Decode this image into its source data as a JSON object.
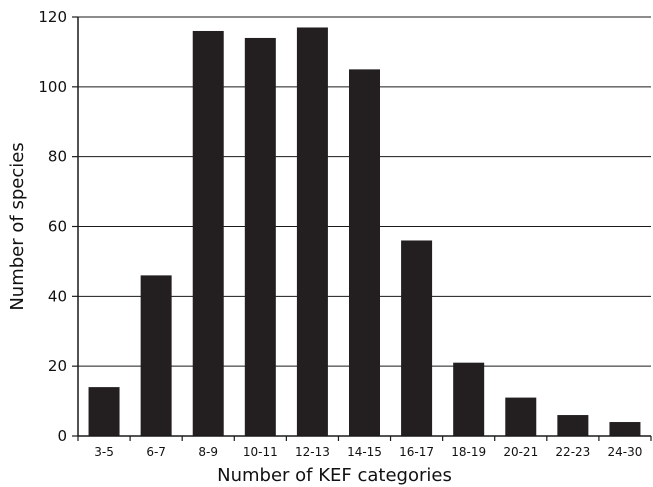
{
  "chart_data": {
    "type": "bar",
    "title": "",
    "xlabel": "Number of KEF categories",
    "ylabel": "Number of species",
    "categories": [
      "3-5",
      "6-7",
      "8-9",
      "10-11",
      "12-13",
      "14-15",
      "16-17",
      "18-19",
      "20-21",
      "22-23",
      "24-30"
    ],
    "values": [
      14,
      46,
      116,
      114,
      117,
      105,
      56,
      21,
      11,
      6,
      4
    ],
    "ylim": [
      0,
      120
    ],
    "yticks": [
      0,
      20,
      40,
      60,
      80,
      100,
      120
    ],
    "grid": true,
    "legend": "none",
    "colors": {
      "bar": "#231f20",
      "grid": "#1a1a1a",
      "axis": "#1a1a1a"
    }
  }
}
